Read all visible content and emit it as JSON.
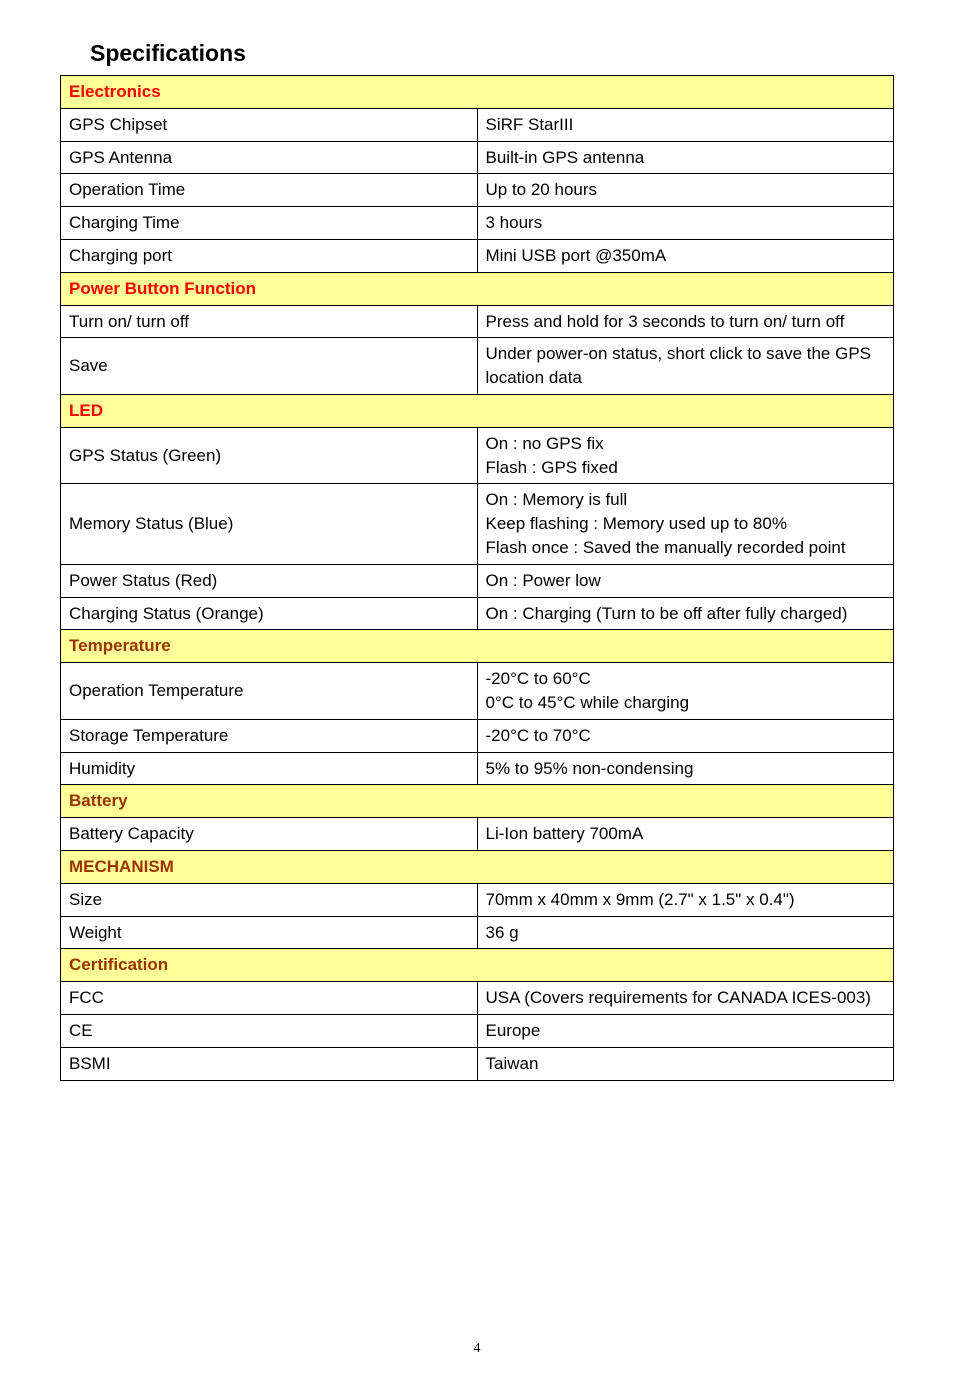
{
  "title": "Specifications",
  "sections": {
    "electronics": {
      "header": "Electronics",
      "header_color": "#ff0000",
      "rows": [
        {
          "label": "GPS Chipset",
          "value": "SiRF StarIII"
        },
        {
          "label": "GPS Antenna",
          "value": "Built-in GPS antenna"
        },
        {
          "label": "Operation Time",
          "value": "Up to 20 hours"
        },
        {
          "label": "Charging Time",
          "value": "3 hours"
        },
        {
          "label": "Charging port",
          "value": "Mini USB port @350mA"
        }
      ]
    },
    "power": {
      "header": "Power Button Function",
      "header_color": "#ff0000",
      "rows": [
        {
          "label": "Turn on/ turn off",
          "value": "Press and hold for 3 seconds to turn on/ turn off"
        },
        {
          "label": "Save",
          "value": "Under power-on status, short click to save the GPS location data"
        }
      ]
    },
    "led": {
      "header": "LED",
      "header_color": "#ff0000",
      "rows": [
        {
          "label": "GPS Status (Green)",
          "value": "On : no GPS fix\nFlash : GPS fixed"
        },
        {
          "label": "Memory Status (Blue)",
          "value": "On : Memory is full\nKeep flashing : Memory used up to 80%\nFlash once : Saved the manually recorded point"
        },
        {
          "label": "Power Status (Red)",
          "value": "On : Power low"
        },
        {
          "label": "Charging Status (Orange)",
          "value": "On : Charging (Turn to be off after fully charged)"
        }
      ]
    },
    "temperature": {
      "header": "Temperature",
      "header_color": "#993300",
      "rows": [
        {
          "label": "Operation Temperature",
          "value": "-20°C to 60°C\n0°C to 45°C while charging"
        },
        {
          "label": "Storage Temperature",
          "value": "-20°C to 70°C"
        },
        {
          "label": "Humidity",
          "value": "5% to 95% non-condensing"
        }
      ]
    },
    "battery": {
      "header": "Battery",
      "header_color": "#993300",
      "rows": [
        {
          "label": "Battery Capacity",
          "value": "Li-Ion battery 700mA"
        }
      ]
    },
    "mechanism": {
      "header": "MECHANISM",
      "header_color": "#993300",
      "rows": [
        {
          "label": "Size",
          "value": "70mm x 40mm x 9mm (2.7\" x 1.5\" x 0.4\")"
        },
        {
          "label": "Weight",
          "value": "36 g"
        }
      ]
    },
    "certification": {
      "header": "Certification",
      "header_color": "#993300",
      "rows": [
        {
          "label": "FCC",
          "value": "USA (Covers requirements for CANADA ICES-003)"
        },
        {
          "label": "CE",
          "value": "Europe"
        },
        {
          "label": "BSMI",
          "value": "Taiwan"
        }
      ]
    }
  },
  "page_number": "4",
  "colors": {
    "section_bg": "#ffff99",
    "border": "#000000",
    "text": "#000000"
  },
  "fonts": {
    "body_size": 17,
    "title_size": 23
  }
}
